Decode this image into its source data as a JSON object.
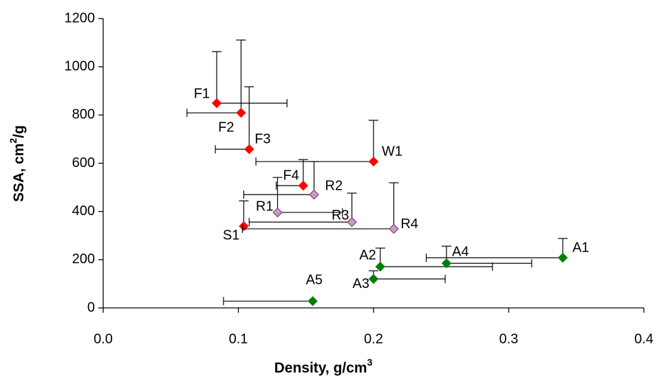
{
  "chart_data": {
    "type": "scatter",
    "xlabel": [
      "Density, g/cm",
      "3"
    ],
    "ylabel": [
      "SSA, cm",
      "2",
      "/g"
    ],
    "xlim": [
      0,
      0.4
    ],
    "ylim": [
      0,
      1200
    ],
    "xticks": [
      {
        "value": 0,
        "label": "0.0"
      },
      0.1,
      0.2,
      0.3,
      0.4
    ],
    "yticks": [
      0,
      200,
      400,
      600,
      800,
      1000,
      1200
    ],
    "grid": false,
    "series": [
      {
        "color": "#ff0000",
        "labels": [
          "F1",
          "F2",
          "F3",
          "W1",
          "F4",
          "S1"
        ],
        "x": [
          0.084,
          0.102,
          0.108,
          0.2,
          0.148,
          0.104
        ],
        "y": [
          849,
          809,
          658,
          607,
          507,
          339
        ],
        "yerr_plus": [
          214,
          302,
          259,
          171,
          108,
          105
        ],
        "xerr_minus": [
          null,
          0.04,
          0.025,
          0.087,
          0.02,
          null
        ],
        "xerr_plus": [
          0.052,
          null,
          null,
          null,
          null,
          null
        ]
      },
      {
        "color": "#cc99cc",
        "labels": [
          "R2",
          "R1",
          "R3",
          "R4"
        ],
        "x": [
          0.156,
          0.129,
          0.184,
          0.215
        ],
        "y": [
          470,
          396,
          356,
          328
        ],
        "yerr_plus": [
          137,
          145,
          120,
          191
        ],
        "xerr_minus": [
          0.052,
          null,
          0.076,
          0.112
        ],
        "xerr_plus": [
          null,
          0.048,
          null,
          null
        ]
      },
      {
        "color": "#008000",
        "labels": [
          "A1",
          "A2",
          "A4",
          "A3",
          "A5"
        ],
        "x": [
          0.34,
          0.205,
          0.254,
          0.2,
          0.155
        ],
        "y": [
          208,
          171,
          185,
          120,
          28
        ],
        "yerr_plus": [
          80,
          77,
          71,
          34,
          null
        ],
        "xerr_minus": [
          0.101,
          null,
          null,
          null,
          0.066
        ],
        "xerr_plus": [
          null,
          0.083,
          0.063,
          0.053,
          null
        ]
      }
    ]
  }
}
